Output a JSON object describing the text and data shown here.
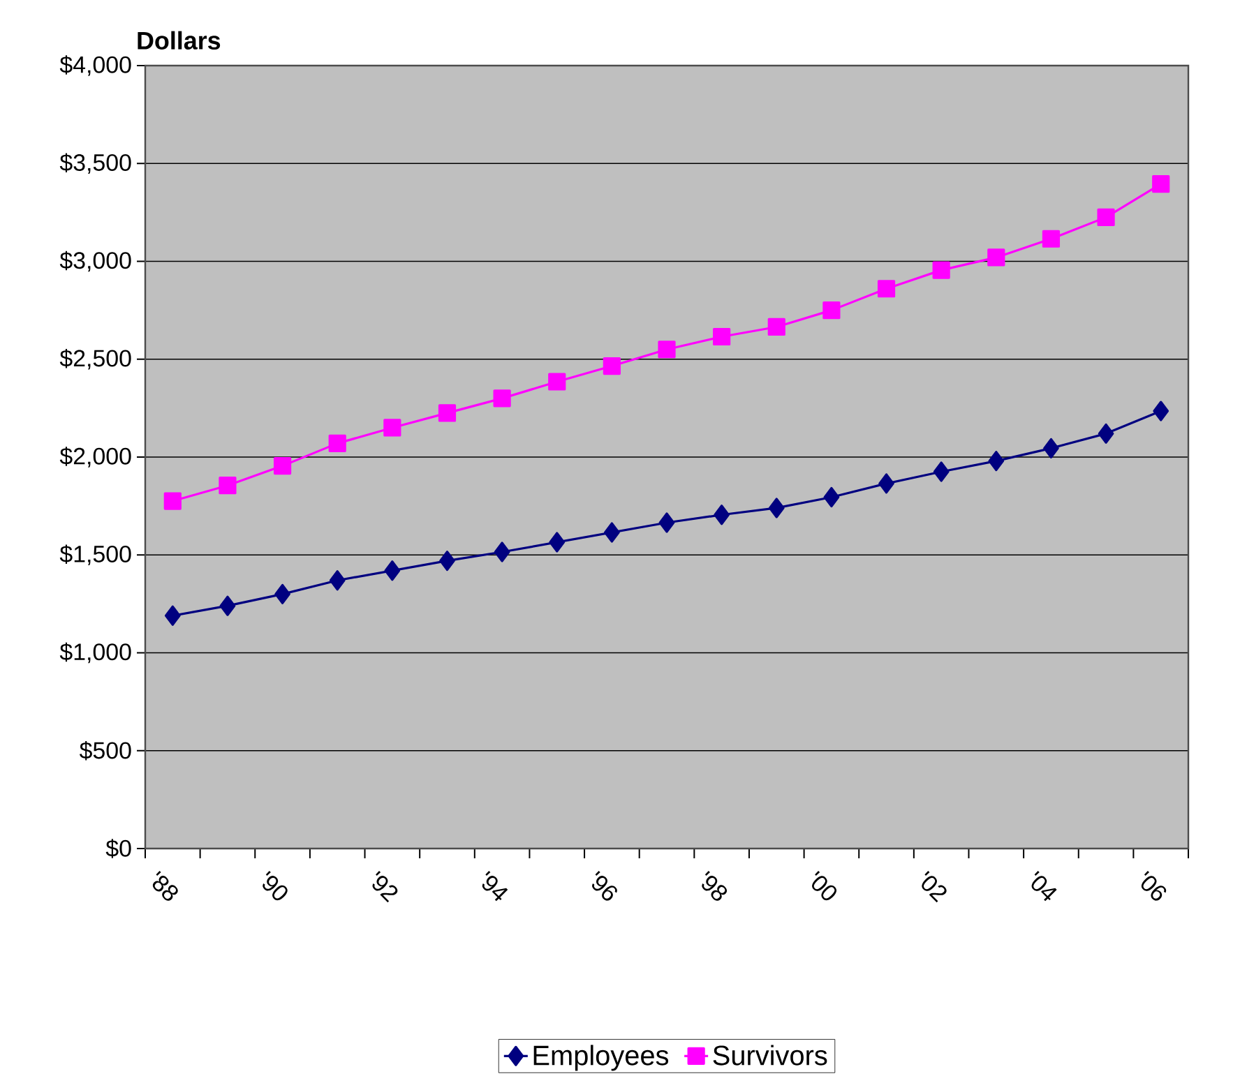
{
  "chart_data": {
    "type": "line",
    "ylabel": "Dollars",
    "categories": [
      "'88",
      null,
      "'90",
      null,
      "'92",
      null,
      "'94",
      null,
      "'96",
      null,
      "'98",
      null,
      "'00",
      null,
      "'02",
      null,
      "'04",
      null,
      "'06"
    ],
    "series": [
      {
        "name": "Employees",
        "color": "#000080",
        "marker": "diamond",
        "values": [
          1190,
          1240,
          1300,
          1370,
          1420,
          1470,
          1515,
          1565,
          1615,
          1665,
          1705,
          1740,
          1795,
          1865,
          1925,
          1980,
          2045,
          2120,
          2235
        ]
      },
      {
        "name": "Survivors",
        "color": "#ff00ff",
        "marker": "square",
        "values": [
          1775,
          1855,
          1955,
          2070,
          2150,
          2225,
          2300,
          2385,
          2465,
          2550,
          2615,
          2665,
          2750,
          2860,
          2955,
          3020,
          3115,
          3225,
          3395
        ]
      }
    ],
    "ylim": [
      0,
      4000
    ],
    "yticks": [
      {
        "value": 0,
        "label": "$0"
      },
      {
        "value": 500,
        "label": "$500"
      },
      {
        "value": 1000,
        "label": "$1,000"
      },
      {
        "value": 1500,
        "label": "$1,500"
      },
      {
        "value": 2000,
        "label": "$2,000"
      },
      {
        "value": 2500,
        "label": "$2,500"
      },
      {
        "value": 3000,
        "label": "$3,000"
      },
      {
        "value": 3500,
        "label": "$3,500"
      },
      {
        "value": 4000,
        "label": "$4,000"
      }
    ],
    "grid": "y",
    "legend": "bottom"
  }
}
